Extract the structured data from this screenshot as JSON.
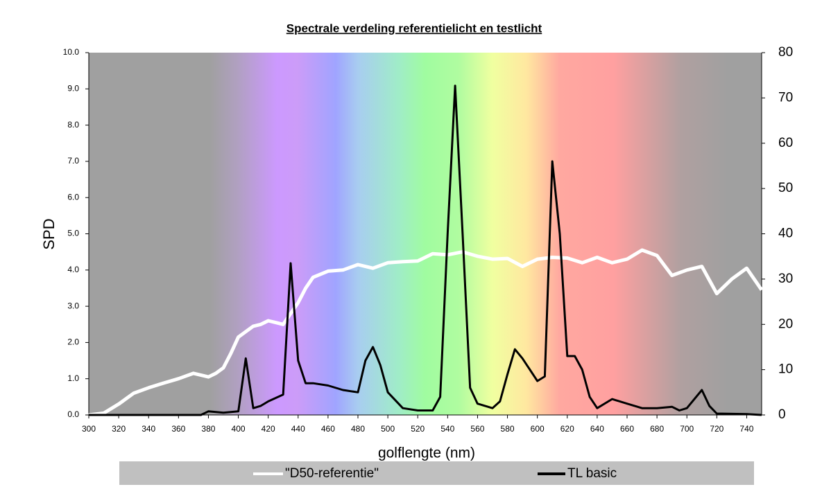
{
  "chart_data": {
    "type": "line",
    "title": "Spectrale verdeling referentielicht en testlicht",
    "x_label": "golflengte (nm)",
    "y_label": "SPD",
    "xlim": [
      300,
      750
    ],
    "xticks": [
      300,
      320,
      340,
      360,
      380,
      400,
      420,
      440,
      460,
      480,
      500,
      520,
      540,
      560,
      580,
      600,
      620,
      640,
      660,
      680,
      700,
      720,
      740
    ],
    "ylim": [
      0,
      10
    ],
    "yticks": [
      {
        "value": 0,
        "label": "0.0"
      },
      {
        "value": 1,
        "label": "1.0"
      },
      {
        "value": 2,
        "label": "2.0"
      },
      {
        "value": 3,
        "label": "3.0"
      },
      {
        "value": 4,
        "label": "4.0"
      },
      {
        "value": 5,
        "label": "5.0"
      },
      {
        "value": 6,
        "label": "6.0"
      },
      {
        "value": 7,
        "label": "7.0"
      },
      {
        "value": 8,
        "label": "8.0"
      },
      {
        "value": 9,
        "label": "9.0"
      },
      {
        "value": 10,
        "label": "10.0"
      }
    ],
    "y2lim": [
      0,
      80
    ],
    "y2ticks": [
      0,
      10,
      20,
      30,
      40,
      50,
      60,
      70,
      80
    ],
    "series": [
      {
        "name": "\"D50-referentie\"",
        "color": "#ffffff",
        "x": [
          300,
          310,
          320,
          330,
          340,
          350,
          360,
          370,
          380,
          385,
          390,
          395,
          400,
          405,
          410,
          415,
          420,
          425,
          430,
          435,
          440,
          445,
          450,
          460,
          470,
          480,
          490,
          500,
          510,
          520,
          530,
          540,
          550,
          560,
          570,
          580,
          590,
          600,
          610,
          620,
          630,
          640,
          650,
          660,
          670,
          680,
          690,
          700,
          710,
          720,
          730,
          740,
          750
        ],
        "values": [
          0,
          0.05,
          0.3,
          0.6,
          0.75,
          0.88,
          1.0,
          1.15,
          1.05,
          1.15,
          1.3,
          1.7,
          2.15,
          2.3,
          2.45,
          2.5,
          2.6,
          2.55,
          2.5,
          2.8,
          3.1,
          3.5,
          3.8,
          3.97,
          4.0,
          4.15,
          4.05,
          4.2,
          4.23,
          4.25,
          4.45,
          4.42,
          4.5,
          4.38,
          4.3,
          4.32,
          4.1,
          4.3,
          4.35,
          4.33,
          4.2,
          4.35,
          4.2,
          4.3,
          4.55,
          4.4,
          3.85,
          4.0,
          4.1,
          3.35,
          3.75,
          4.05,
          3.45
        ]
      },
      {
        "name": "TL basic",
        "color": "#000000",
        "axis": "y2",
        "x": [
          300,
          370,
          375,
          380,
          390,
          400,
          405,
          410,
          415,
          420,
          430,
          435,
          440,
          445,
          450,
          460,
          470,
          480,
          485,
          490,
          495,
          500,
          510,
          520,
          530,
          535,
          540,
          545,
          550,
          555,
          560,
          570,
          575,
          580,
          585,
          590,
          600,
          605,
          610,
          615,
          620,
          625,
          630,
          635,
          640,
          650,
          660,
          670,
          680,
          690,
          695,
          700,
          710,
          715,
          720,
          740,
          750
        ],
        "values": [
          0,
          0,
          0,
          0.8,
          0.5,
          0.8,
          12.5,
          1.5,
          2,
          3,
          4.5,
          33.5,
          12,
          7,
          7,
          6.5,
          5.5,
          5,
          12,
          15,
          11,
          5,
          1.5,
          1,
          1,
          4,
          40,
          72.7,
          40,
          6,
          2.5,
          1.5,
          3,
          9,
          14.5,
          12.5,
          7.5,
          8.5,
          56,
          40,
          13,
          13,
          10,
          4,
          1.5,
          3.5,
          2.5,
          1.5,
          1.5,
          1.8,
          1,
          1.5,
          5.5,
          2,
          0.3,
          0.2,
          0
        ]
      }
    ]
  }
}
